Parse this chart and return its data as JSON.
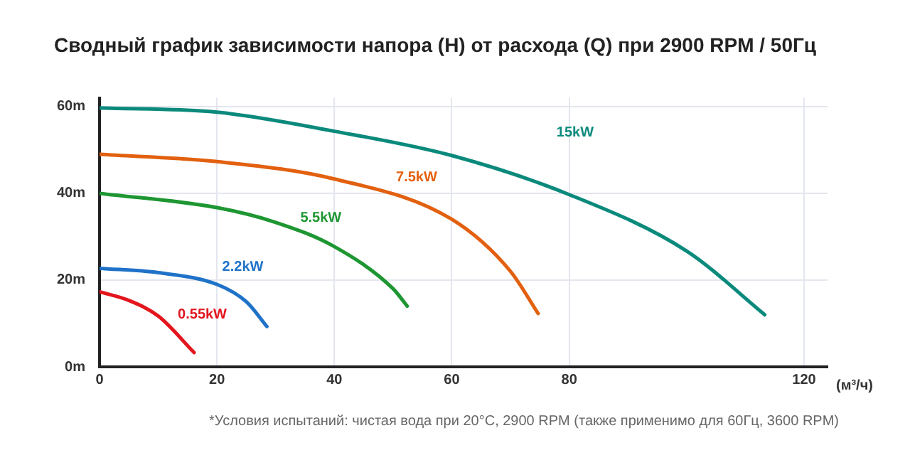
{
  "chart_data": {
    "type": "line",
    "title": "Сводный график зависимости напора (H) от расхода (Q) при 2900 RPM / 50Гц",
    "xlabel": "(м³/ч)",
    "xlim": [
      0,
      124
    ],
    "xticks": [
      0,
      20,
      40,
      60,
      80,
      120
    ],
    "ylim": [
      0,
      62
    ],
    "yticks": [
      {
        "value": 0,
        "label": "0m"
      },
      {
        "value": 20,
        "label": "20m"
      },
      {
        "value": 40,
        "label": "40m"
      },
      {
        "value": 60,
        "label": "60m"
      }
    ],
    "grid": true,
    "legend": false,
    "marker": "none",
    "line_style": "solid",
    "series": [
      {
        "name": "15kW",
        "color": "#0b8a7c",
        "x": [
          0,
          20,
          40,
          60,
          80,
          100,
          113.3
        ],
        "values": [
          59.7,
          58.7,
          54.3,
          48.7,
          39.7,
          26.7,
          12
        ]
      },
      {
        "name": "7.5kW",
        "color": "#e2600f",
        "x": [
          0,
          20,
          40,
          60,
          70,
          74.7
        ],
        "values": [
          49,
          47.3,
          43.3,
          34,
          22,
          12.3
        ]
      },
      {
        "name": "5.5kW",
        "color": "#1e9632",
        "x": [
          0,
          20,
          30,
          40,
          50,
          52.4
        ],
        "values": [
          40,
          36.7,
          33.3,
          27.7,
          18,
          14
        ]
      },
      {
        "name": "2.2kW",
        "color": "#1f72c8",
        "x": [
          0,
          10,
          20,
          25,
          28.5
        ],
        "values": [
          22.7,
          21.7,
          19,
          15,
          9.3
        ]
      },
      {
        "name": "0.55kW",
        "color": "#e3161e",
        "x": [
          0,
          5,
          10,
          16.1
        ],
        "values": [
          17.3,
          15.3,
          11.7,
          3.3
        ]
      }
    ],
    "annotations": [
      "*Условия испытаний: чистая вода при 20°C, 2900 RPM (также применимо для 60Гц, 3600 RPM)"
    ]
  }
}
